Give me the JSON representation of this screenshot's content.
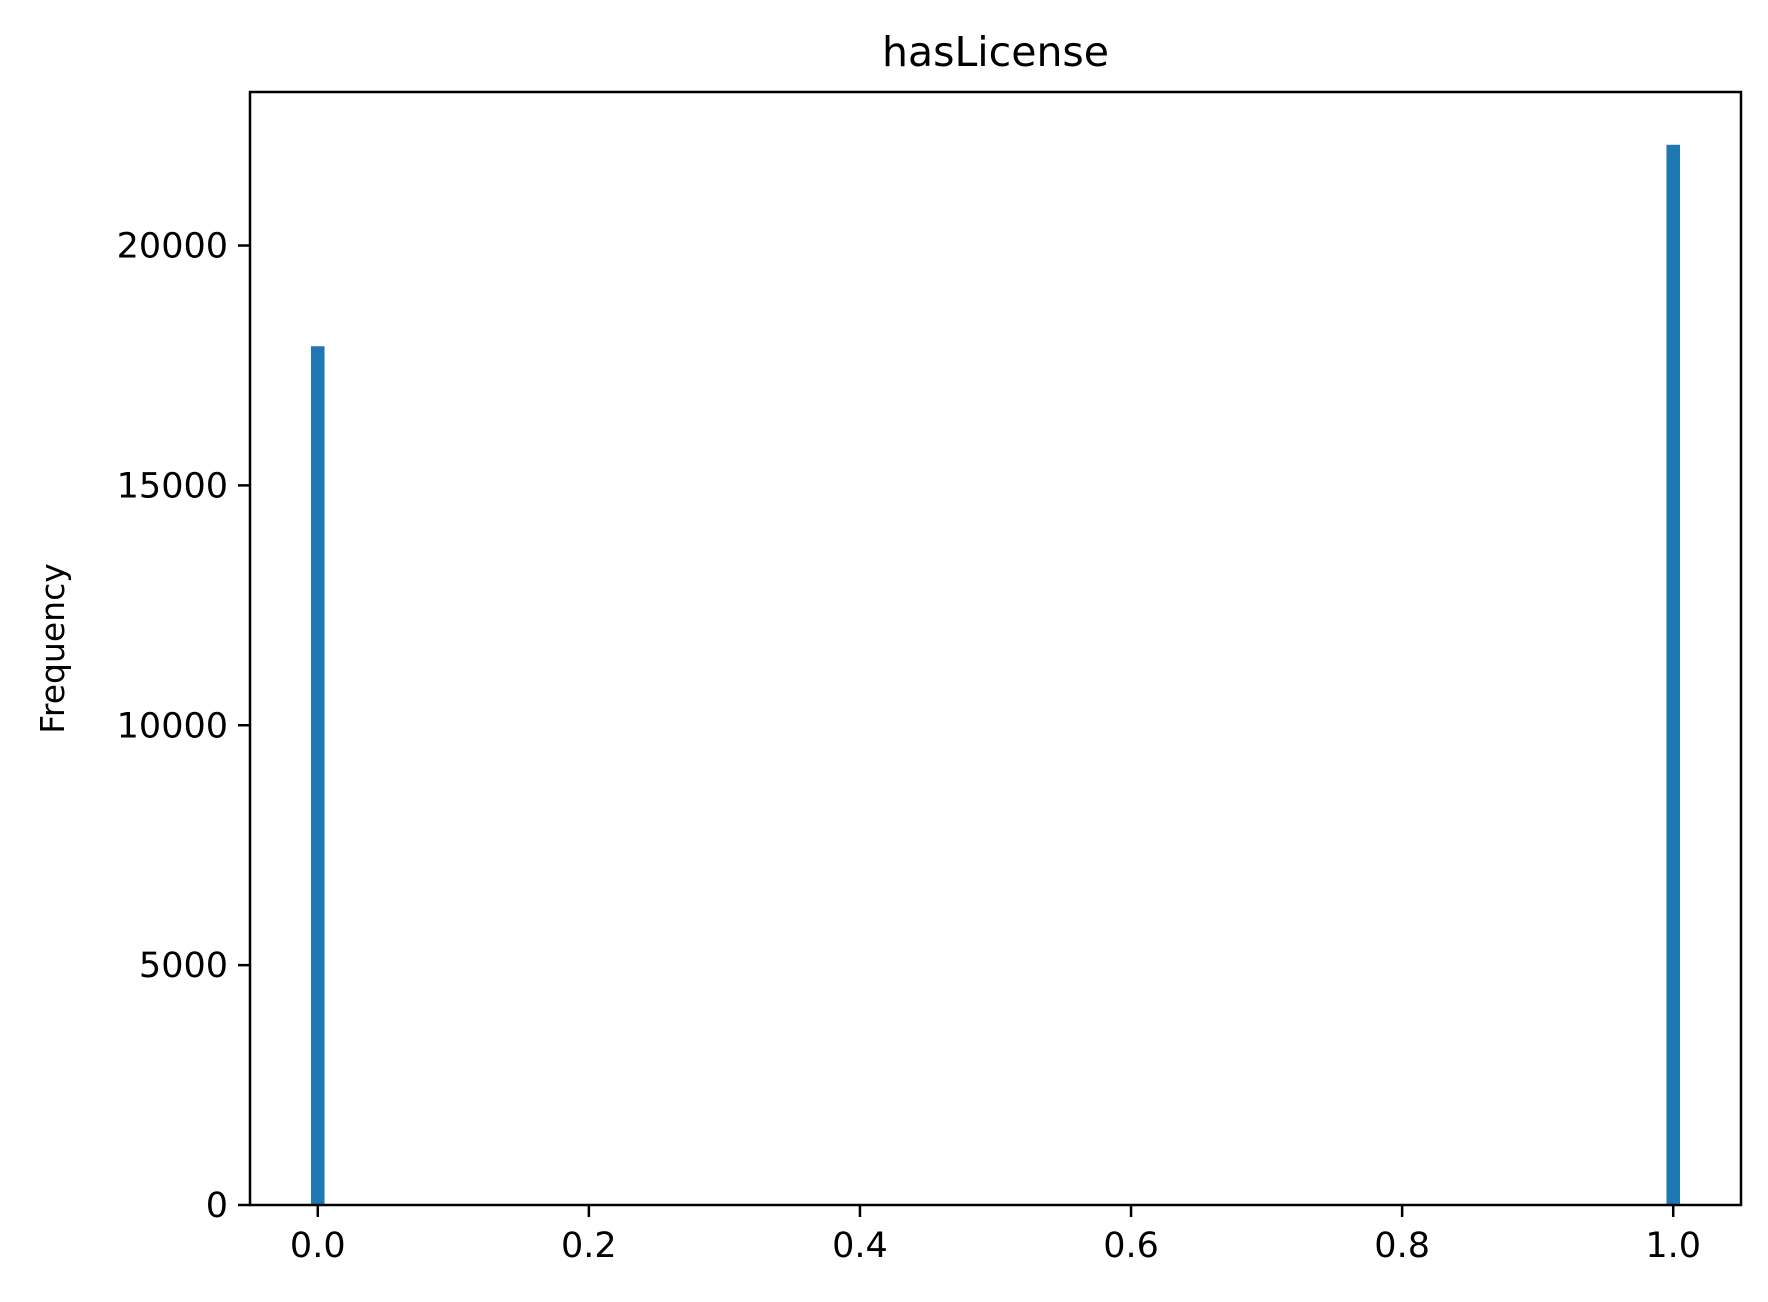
{
  "chart_data": {
    "type": "bar",
    "title": "hasLicense",
    "xlabel": "",
    "ylabel": "Frequency",
    "bins": [
      {
        "x": 0.0,
        "value": 17900
      },
      {
        "x": 1.0,
        "value": 22100
      }
    ],
    "bin_width": 0.01,
    "xlim": [
      -0.05,
      1.05
    ],
    "ylim": [
      0,
      23200
    ],
    "xticks": [
      0.0,
      0.2,
      0.4,
      0.6,
      0.8,
      1.0
    ],
    "xtick_labels": [
      "0.0",
      "0.2",
      "0.4",
      "0.6",
      "0.8",
      "1.0"
    ],
    "yticks": [
      0,
      5000,
      10000,
      15000,
      20000
    ],
    "ytick_labels": [
      "0",
      "5000",
      "10000",
      "15000",
      "20000"
    ],
    "grid": false,
    "legend": "none",
    "bar_color": "#1f77b4"
  }
}
